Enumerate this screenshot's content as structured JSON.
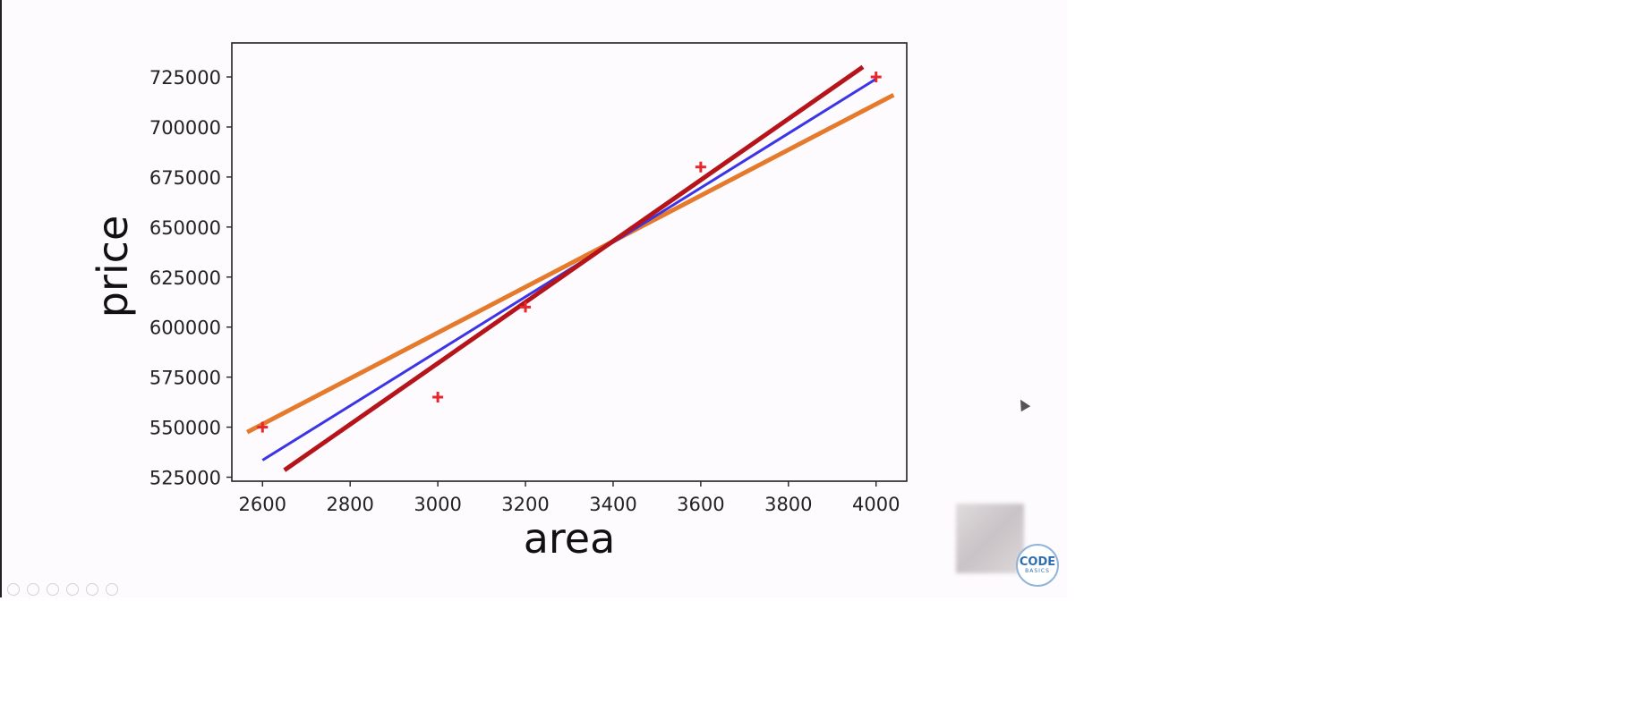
{
  "chart_data": {
    "type": "scatter",
    "xlabel": "area",
    "ylabel": "price",
    "xlim": [
      2530,
      4070
    ],
    "ylim": [
      523000,
      742000
    ],
    "xticks": [
      2600,
      2800,
      3000,
      3200,
      3400,
      3600,
      3800,
      4000
    ],
    "yticks": [
      525000,
      550000,
      575000,
      600000,
      625000,
      650000,
      675000,
      700000,
      725000
    ],
    "points": {
      "marker": "+",
      "color": "#e8262b",
      "x": [
        2600,
        3000,
        3200,
        3600,
        4000
      ],
      "y": [
        550000,
        565000,
        610000,
        680000,
        725000
      ]
    },
    "lines": [
      {
        "color": "#e67a2c",
        "x": [
          2565,
          4040
        ],
        "y": [
          547500,
          716000
        ]
      },
      {
        "color": "#3b35e6",
        "x": [
          2600,
          4000
        ],
        "y": [
          533500,
          724000
        ]
      },
      {
        "color": "#b5141a",
        "x": [
          2650,
          3970
        ],
        "y": [
          528500,
          730000
        ]
      }
    ],
    "grid": false
  },
  "badge": {
    "line1": "CODE",
    "line2": "BASICS"
  },
  "colors": {
    "axis": "#222222",
    "background": "#fdfbfd"
  }
}
